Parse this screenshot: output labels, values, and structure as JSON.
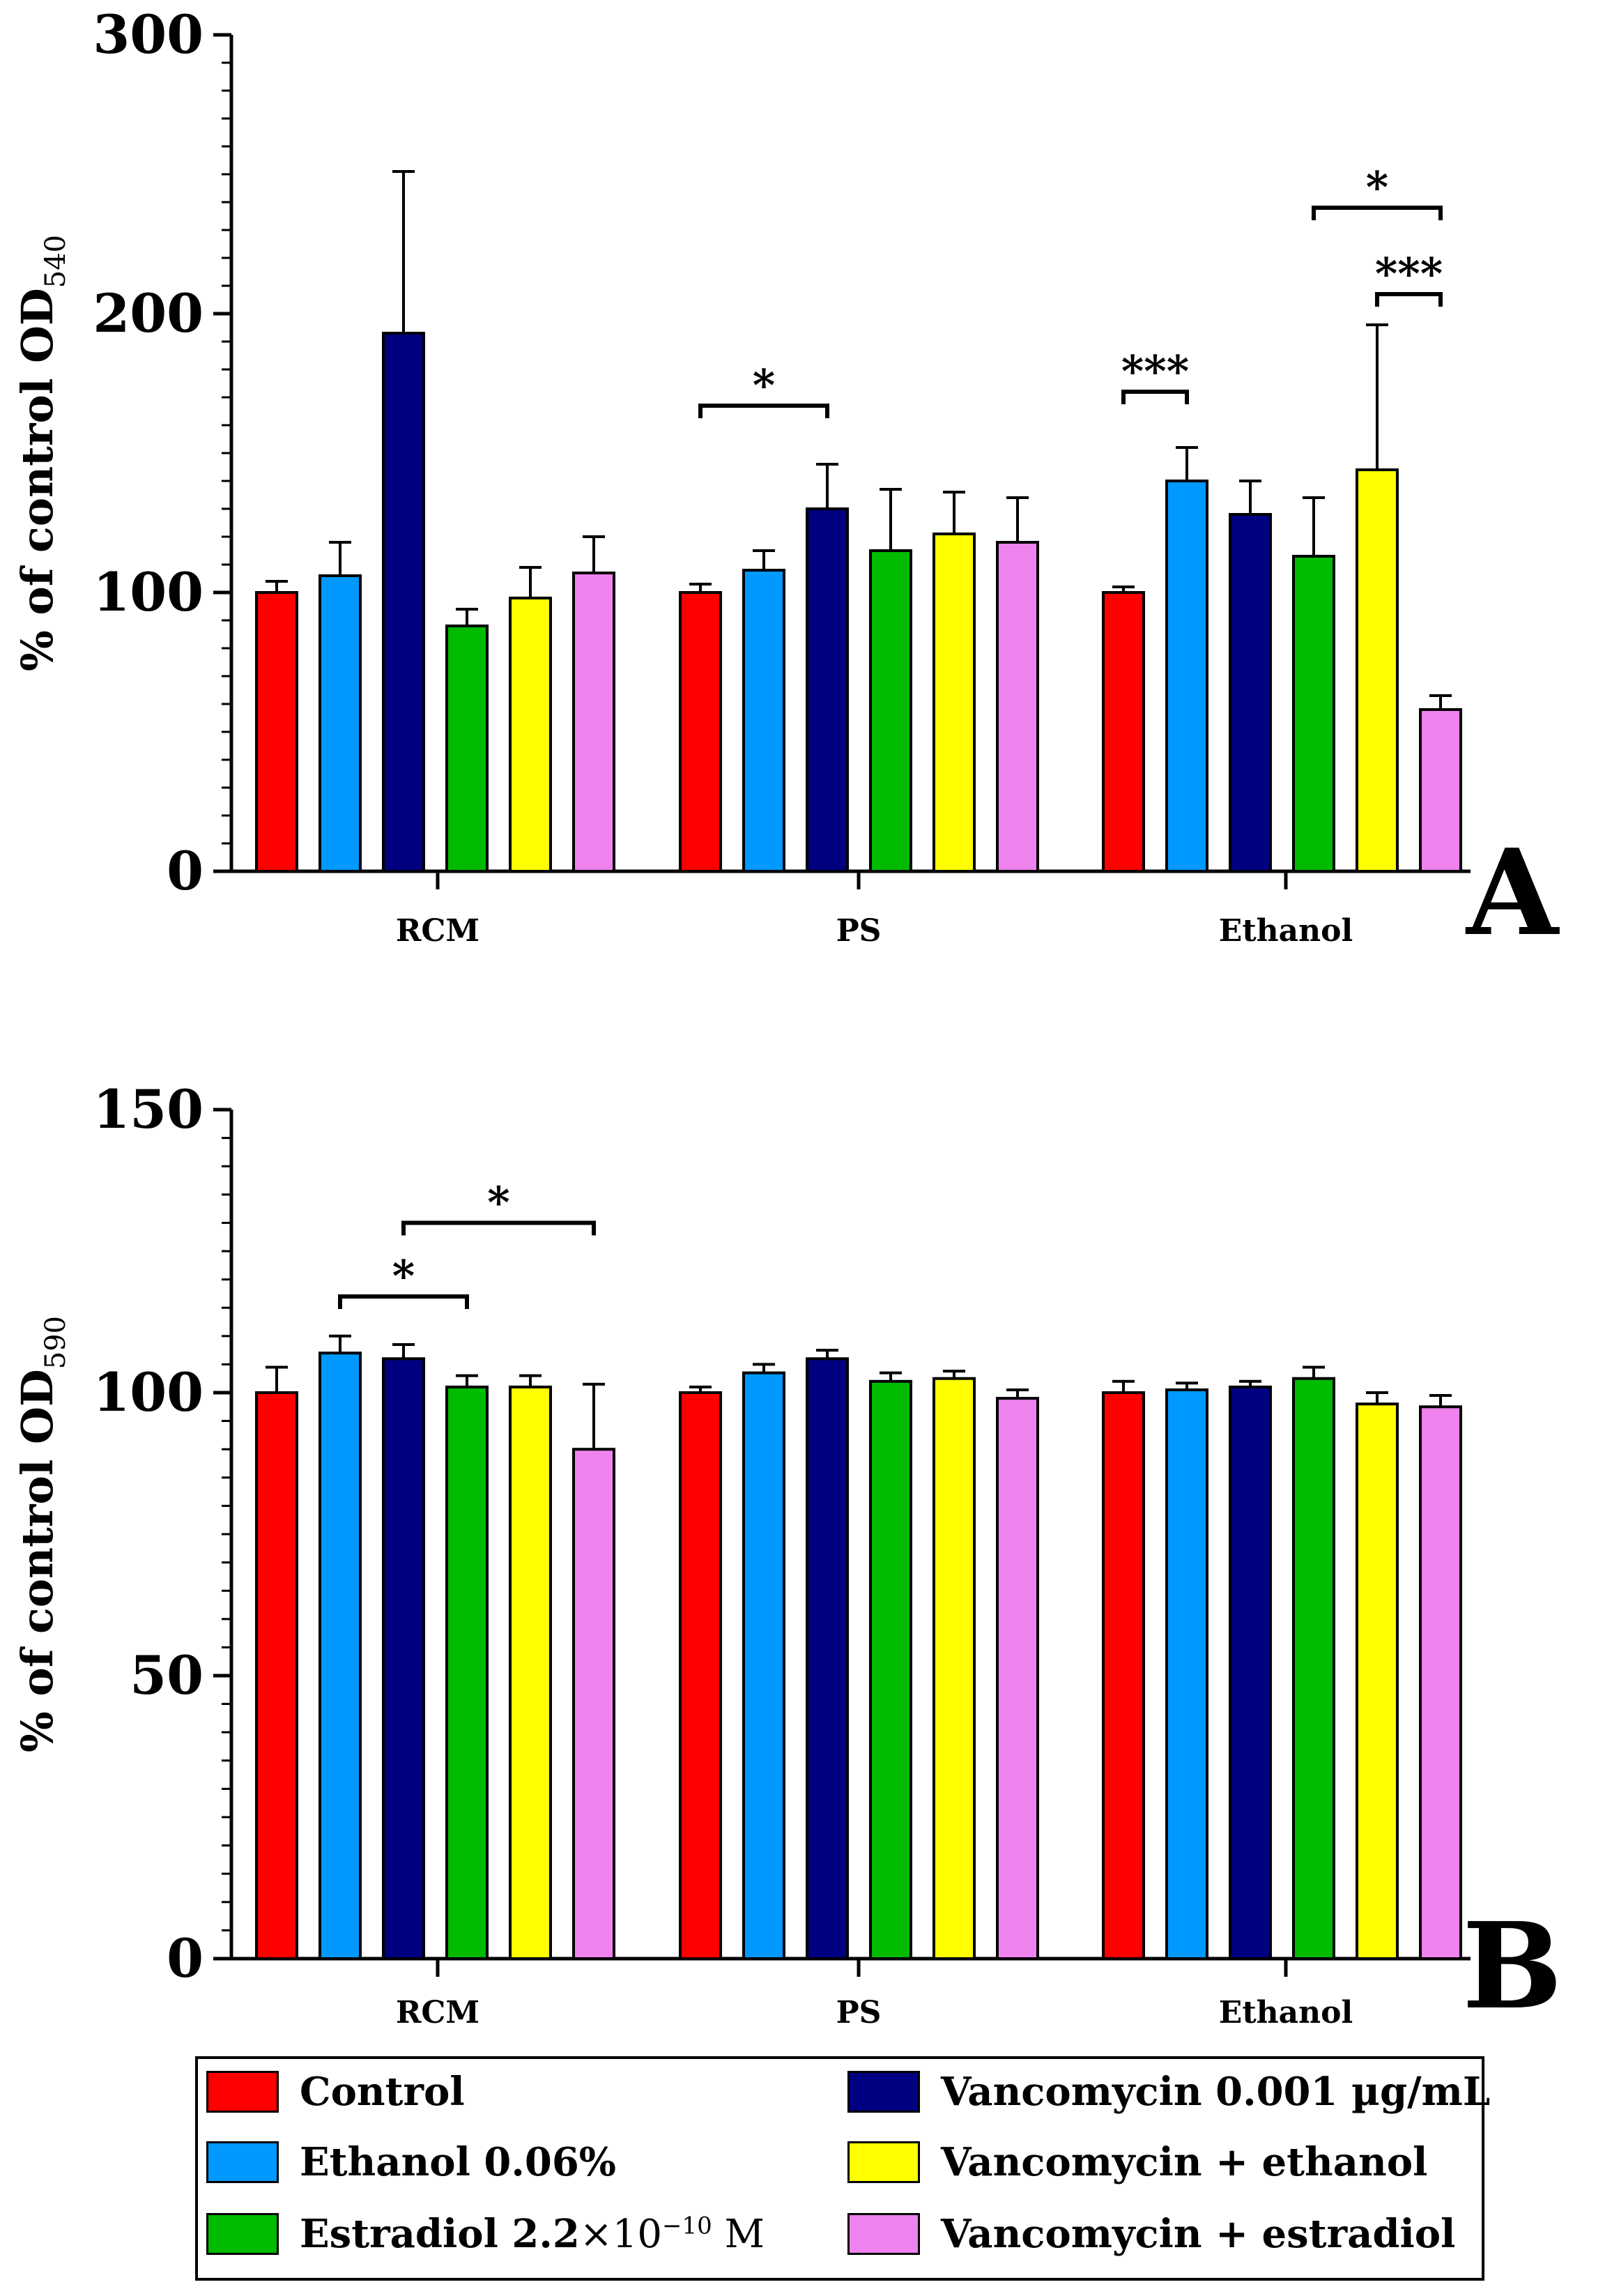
{
  "legend": {
    "control": "Control",
    "ethanol": "Ethanol 0.06%",
    "estradiol_prefix": "Estradiol 2.2",
    "estradiol_times": "×10",
    "estradiol_exp": "−10",
    "estradiol_unit": " M",
    "vanco": "Vancomycin 0.001 µg/mL",
    "vanco_eth": "Vancomycin + ethanol",
    "vanco_estr": "Vancomycin + estradiol"
  },
  "colors": {
    "Control": "#ff0000",
    "Ethanol 0.06%": "#0099ff",
    "Vancomycin 0.001 µg/mL": "#000080",
    "Estradiol 2.2×10−10 M": "#00bb00",
    "Vancomycin + ethanol": "#ffff00",
    "Vancomycin + estradiol": "#ee82ee"
  },
  "chart_data": [
    {
      "type": "bar",
      "panel_label": "A",
      "ylabel": "% of control OD",
      "ylabel_sub": "540",
      "ylim": [
        0,
        300
      ],
      "yticks": [
        "0",
        "100",
        "200",
        "300"
      ],
      "categories": [
        "RCM",
        "PS",
        "Ethanol"
      ],
      "series": [
        {
          "name": "Control",
          "values": [
            100,
            100,
            100
          ],
          "errors": [
            4,
            3,
            2
          ]
        },
        {
          "name": "Ethanol 0.06%",
          "values": [
            106,
            108,
            140
          ],
          "errors": [
            12,
            7,
            12
          ]
        },
        {
          "name": "Vancomycin 0.001 µg/mL",
          "values": [
            193,
            130,
            128
          ],
          "errors": [
            58,
            16,
            12
          ]
        },
        {
          "name": "Estradiol 2.2×10−10 M",
          "values": [
            88,
            115,
            113
          ],
          "errors": [
            6,
            22,
            21
          ]
        },
        {
          "name": "Vancomycin + ethanol",
          "values": [
            98,
            121,
            144
          ],
          "errors": [
            11,
            15,
            52
          ]
        },
        {
          "name": "Vancomycin + estradiol",
          "values": [
            107,
            118,
            58
          ],
          "errors": [
            13,
            16,
            5
          ]
        }
      ],
      "significance": [
        {
          "category": 1,
          "from": 0,
          "to": 2,
          "y": 167,
          "label": "*"
        },
        {
          "category": 2,
          "from": 0,
          "to": 1,
          "y": 172,
          "label": "***"
        },
        {
          "category": 2,
          "from": 3,
          "to": 5,
          "y": 238,
          "label": "*"
        },
        {
          "category": 2,
          "from": 4,
          "to": 5,
          "y": 207,
          "label": "***"
        }
      ]
    },
    {
      "type": "bar",
      "panel_label": "B",
      "ylabel": "% of control OD",
      "ylabel_sub": "590",
      "ylim": [
        0,
        150
      ],
      "yticks": [
        "0",
        "50",
        "100",
        "150"
      ],
      "categories": [
        "RCM",
        "PS",
        "Ethanol"
      ],
      "series": [
        {
          "name": "Control",
          "values": [
            100,
            100,
            100
          ],
          "errors": [
            4.5,
            1,
            2
          ]
        },
        {
          "name": "Ethanol 0.06%",
          "values": [
            107,
            103.5,
            100.5
          ],
          "errors": [
            3,
            1.5,
            1.2
          ]
        },
        {
          "name": "Vancomycin 0.001 µg/mL",
          "values": [
            106,
            106,
            101
          ],
          "errors": [
            2.5,
            1.5,
            1
          ]
        },
        {
          "name": "Estradiol 2.2×10−10 M",
          "values": [
            101,
            102,
            102.5
          ],
          "errors": [
            2,
            1.5,
            2
          ]
        },
        {
          "name": "Vancomycin + ethanol",
          "values": [
            101,
            102.5,
            98
          ],
          "errors": [
            2,
            1.3,
            2
          ]
        },
        {
          "name": "Vancomycin + estradiol",
          "values": [
            90,
            99,
            97.5
          ],
          "errors": [
            11.5,
            1.5,
            2
          ]
        }
      ],
      "significance": [
        {
          "category": 0,
          "from": 1,
          "to": 3,
          "y": 117,
          "label": "*"
        },
        {
          "category": 0,
          "from": 2,
          "to": 5,
          "y": 130,
          "label": "*"
        }
      ]
    }
  ]
}
